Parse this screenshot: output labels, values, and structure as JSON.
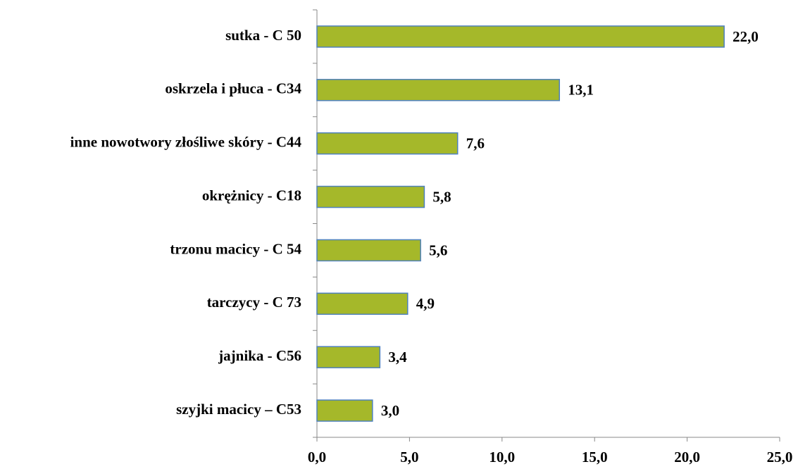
{
  "chart_data": {
    "type": "bar",
    "orientation": "horizontal",
    "categories": [
      "sutka - C 50",
      "oskrzela i płuca - C34",
      "inne nowotwory złośliwe skóry - C44",
      "okrężnicy - C18",
      "trzonu macicy - C 54",
      "tarczycy - C 73",
      "jajnika - C56",
      "szyjki macicy – C53"
    ],
    "values": [
      22.0,
      13.1,
      7.6,
      5.8,
      5.6,
      4.9,
      3.4,
      3.0
    ],
    "value_labels": [
      "22,0",
      "13,1",
      "7,6",
      "5,8",
      "5,6",
      "4,9",
      "3,4",
      "3,0"
    ],
    "color": "#a5b82a",
    "edge_color": "#4f81bd",
    "xlim": [
      0,
      25
    ],
    "xticks": [
      {
        "value": 0,
        "label": "0,0"
      },
      {
        "value": 5,
        "label": "5,0"
      },
      {
        "value": 10,
        "label": "10,0"
      },
      {
        "value": 15,
        "label": "15,0"
      },
      {
        "value": 20,
        "label": "20,0"
      },
      {
        "value": 25,
        "label": "25,0"
      }
    ],
    "grid": false
  }
}
